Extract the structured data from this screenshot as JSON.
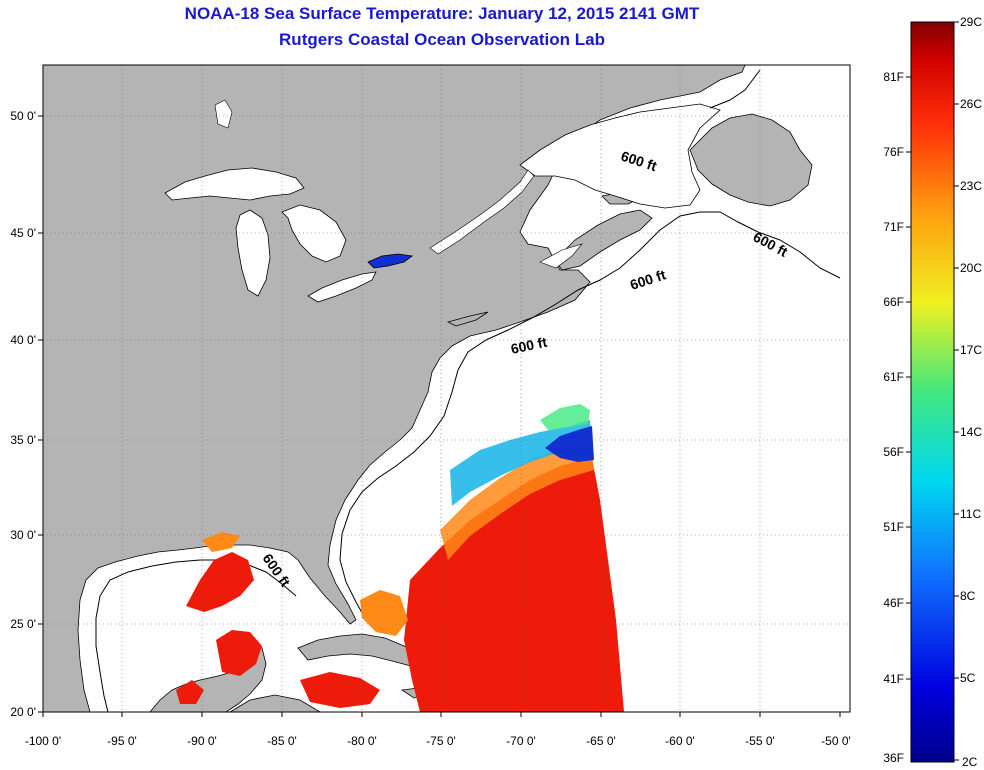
{
  "title_line1": "NOAA-18 Sea Surface Temperature:  January 12, 2015 2141 GMT",
  "title_line2": "Rutgers Coastal Ocean Observation Lab",
  "lon_labels": [
    "-100 0'",
    "-95 0'",
    "-90 0'",
    "-85 0'",
    "-80 0'",
    "-75 0'",
    "-70 0'",
    "-65 0'",
    "-60 0'",
    "-55 0'",
    "-50 0'"
  ],
  "lat_labels": [
    "20 0'",
    "25 0'",
    "30 0'",
    "35 0'",
    "40 0'",
    "45 0'",
    "50 0'"
  ],
  "contour_label": "600 ft",
  "colorbar": {
    "celsius_labels": [
      "29C",
      "26C",
      "23C",
      "20C",
      "17C",
      "14C",
      "11C",
      "8C",
      "5C",
      "2C"
    ],
    "fahrenheit_labels": [
      "81F",
      "76F",
      "71F",
      "66F",
      "61F",
      "56F",
      "51F",
      "46F",
      "41F",
      "36F"
    ]
  },
  "colors": {
    "land": "#b4b4b4",
    "ocean": "#ffffff",
    "title": "#1a1acc",
    "sst_warm": "#ee1a0a",
    "sst_mid": "#ff8a18",
    "sst_cool": "#20b8e8",
    "sst_cold": "#1030d0"
  }
}
